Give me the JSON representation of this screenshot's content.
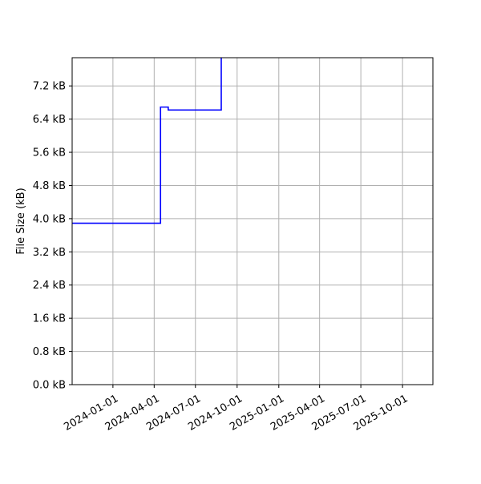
{
  "chart_data": {
    "type": "line",
    "title": "",
    "xlabel": "",
    "ylabel": "File Size (kB)",
    "xlim": [
      "2023-10-03",
      "2025-12-07"
    ],
    "ylim": [
      0,
      7.88
    ],
    "grid": true,
    "x_ticks": [
      "2024-01-01",
      "2024-04-01",
      "2024-07-01",
      "2024-10-01",
      "2025-01-01",
      "2025-04-01",
      "2025-07-01",
      "2025-10-01"
    ],
    "y_ticks": [
      0,
      0.8,
      1.6,
      2.4,
      3.2,
      4.0,
      4.8,
      5.6,
      6.4,
      7.2
    ],
    "y_tick_labels": [
      "0.0 kB",
      "0.8 kB",
      "1.6 kB",
      "2.4 kB",
      "3.2 kB",
      "4.0 kB",
      "4.8 kB",
      "5.6 kB",
      "6.4 kB",
      "7.2 kB"
    ],
    "series": [
      {
        "color": "#0000ff",
        "step": "post",
        "points": [
          {
            "x": "2023-10-03",
            "y": 3.89
          },
          {
            "x": "2024-04-15",
            "y": 6.69
          },
          {
            "x": "2024-05-02",
            "y": 6.62
          },
          {
            "x": "2024-08-27",
            "y": 9.0
          }
        ]
      }
    ]
  }
}
